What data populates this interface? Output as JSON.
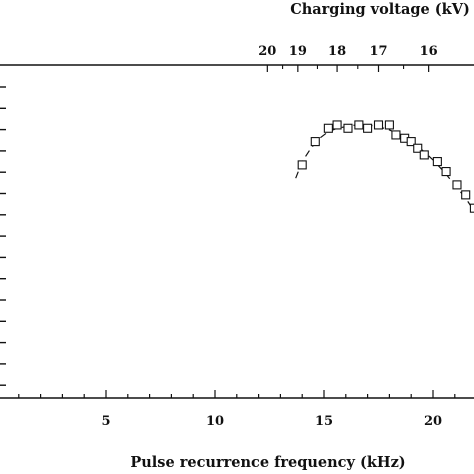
{
  "chart_data": {
    "type": "scatter",
    "xlabel": "Pulse recurrence frequency (kHz)",
    "top_axis_label": "Charging voltage (kV)",
    "x_ticks": [
      "5",
      "10",
      "15",
      "20"
    ],
    "top_ticks": [
      {
        "label": "20",
        "x": 12.4
      },
      {
        "label": "19",
        "x": 13.8
      },
      {
        "label": "18",
        "x": 15.6
      },
      {
        "label": "17",
        "x": 17.5
      },
      {
        "label": "16",
        "x": 19.8
      }
    ],
    "xlim": [
      0,
      22
    ],
    "ylim": [
      0,
      10
    ],
    "grid": false,
    "series": [
      {
        "marker": "open-square",
        "x": [
          14.0,
          14.6,
          15.2,
          15.6,
          16.1,
          16.6,
          17.0,
          17.5,
          18.0,
          18.3,
          18.7,
          19.0,
          19.3,
          19.6,
          20.2,
          20.6,
          21.1,
          21.5,
          21.9
        ],
        "y": [
          7.0,
          7.7,
          8.1,
          8.2,
          8.1,
          8.2,
          8.1,
          8.2,
          8.2,
          7.9,
          7.8,
          7.7,
          7.5,
          7.3,
          7.1,
          6.8,
          6.4,
          6.1,
          5.7
        ]
      }
    ],
    "fit_curve": {
      "style": "dashed",
      "x": [
        13.7,
        14.0,
        14.4,
        14.8,
        15.2,
        15.6,
        16.0,
        16.5,
        17.0,
        17.5,
        18.0,
        18.5,
        19.0,
        19.5,
        20.0,
        20.5,
        21.0,
        21.5,
        22.0
      ],
      "y": [
        6.6,
        7.1,
        7.5,
        7.8,
        8.0,
        8.1,
        8.15,
        8.2,
        8.2,
        8.15,
        8.05,
        7.9,
        7.7,
        7.45,
        7.15,
        6.8,
        6.4,
        6.0,
        5.5
      ]
    }
  }
}
